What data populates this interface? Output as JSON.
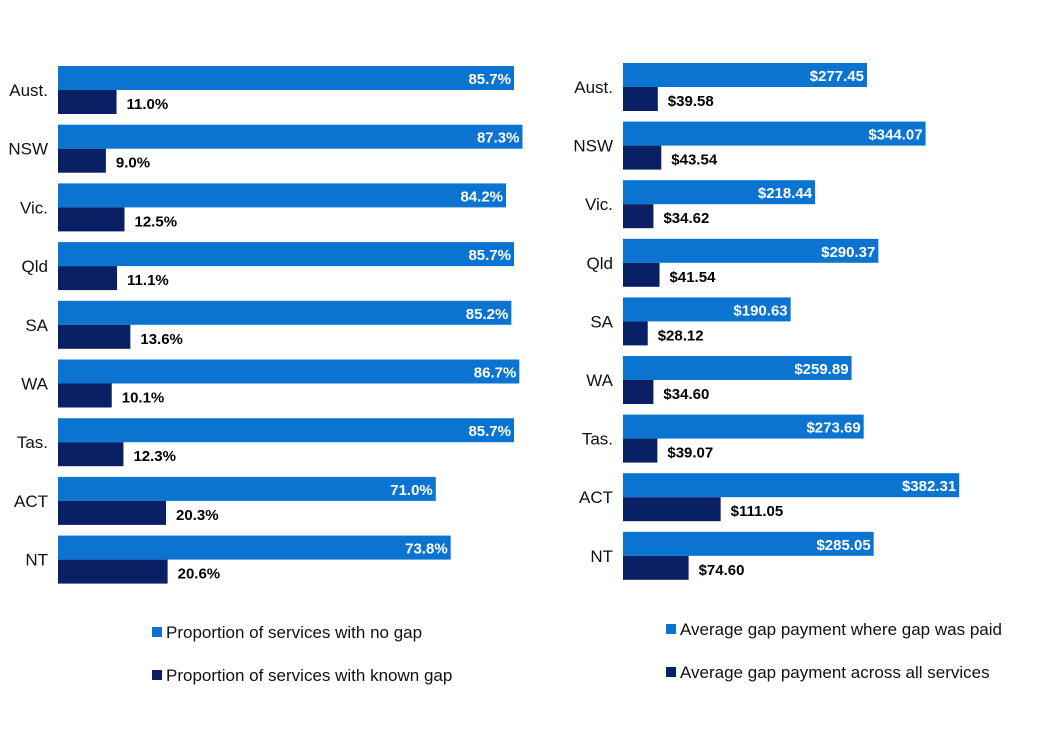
{
  "colors": {
    "no_gap": "#0a74d0",
    "known_gap": "#0a2064"
  },
  "chart_data": [
    {
      "type": "bar",
      "orientation": "horizontal",
      "categories": [
        "Aust.",
        "NSW",
        "Vic.",
        "Qld",
        "SA",
        "WA",
        "Tas.",
        "ACT",
        "NT"
      ],
      "series": [
        {
          "name": "Proportion of services with no gap",
          "values": [
            85.7,
            87.3,
            84.2,
            85.7,
            85.2,
            86.7,
            85.7,
            71.0,
            73.8
          ],
          "labels": [
            "85.7%",
            "87.3%",
            "84.2%",
            "85.7%",
            "85.2%",
            "86.7%",
            "85.7%",
            "71.0%",
            "73.8%"
          ]
        },
        {
          "name": "Proportion of services with known gap",
          "values": [
            11.0,
            9.0,
            12.5,
            11.1,
            13.6,
            10.1,
            12.3,
            20.3,
            20.6
          ],
          "labels": [
            "11.0%",
            "9.0%",
            "12.5%",
            "11.1%",
            "13.6%",
            "10.1%",
            "12.3%",
            "20.3%",
            "20.6%"
          ]
        }
      ],
      "xlim": [
        0,
        100
      ],
      "grid": false,
      "legend": "bottom"
    },
    {
      "type": "bar",
      "orientation": "horizontal",
      "categories": [
        "Aust.",
        "NSW",
        "Vic.",
        "Qld",
        "SA",
        "WA",
        "Tas.",
        "ACT",
        "NT"
      ],
      "series": [
        {
          "name": "Average gap payment where gap was paid",
          "values": [
            277.45,
            344.07,
            218.44,
            290.37,
            190.63,
            259.89,
            273.69,
            382.31,
            285.05
          ],
          "labels": [
            "$277.45",
            "$344.07",
            "$218.44",
            "$290.37",
            "$190.63",
            "$259.89",
            "$273.69",
            "$382.31",
            "$285.05"
          ]
        },
        {
          "name": "Average gap payment across all services",
          "values": [
            39.58,
            43.54,
            34.62,
            41.54,
            28.12,
            34.6,
            39.07,
            111.05,
            74.6
          ],
          "labels": [
            "$39.58",
            "$43.54",
            "$34.62",
            "$41.54",
            "$28.12",
            "$34.60",
            "$39.07",
            "$111.05",
            "$74.60"
          ]
        }
      ],
      "xlim": [
        0,
        400
      ],
      "grid": false,
      "legend": "bottom"
    }
  ]
}
